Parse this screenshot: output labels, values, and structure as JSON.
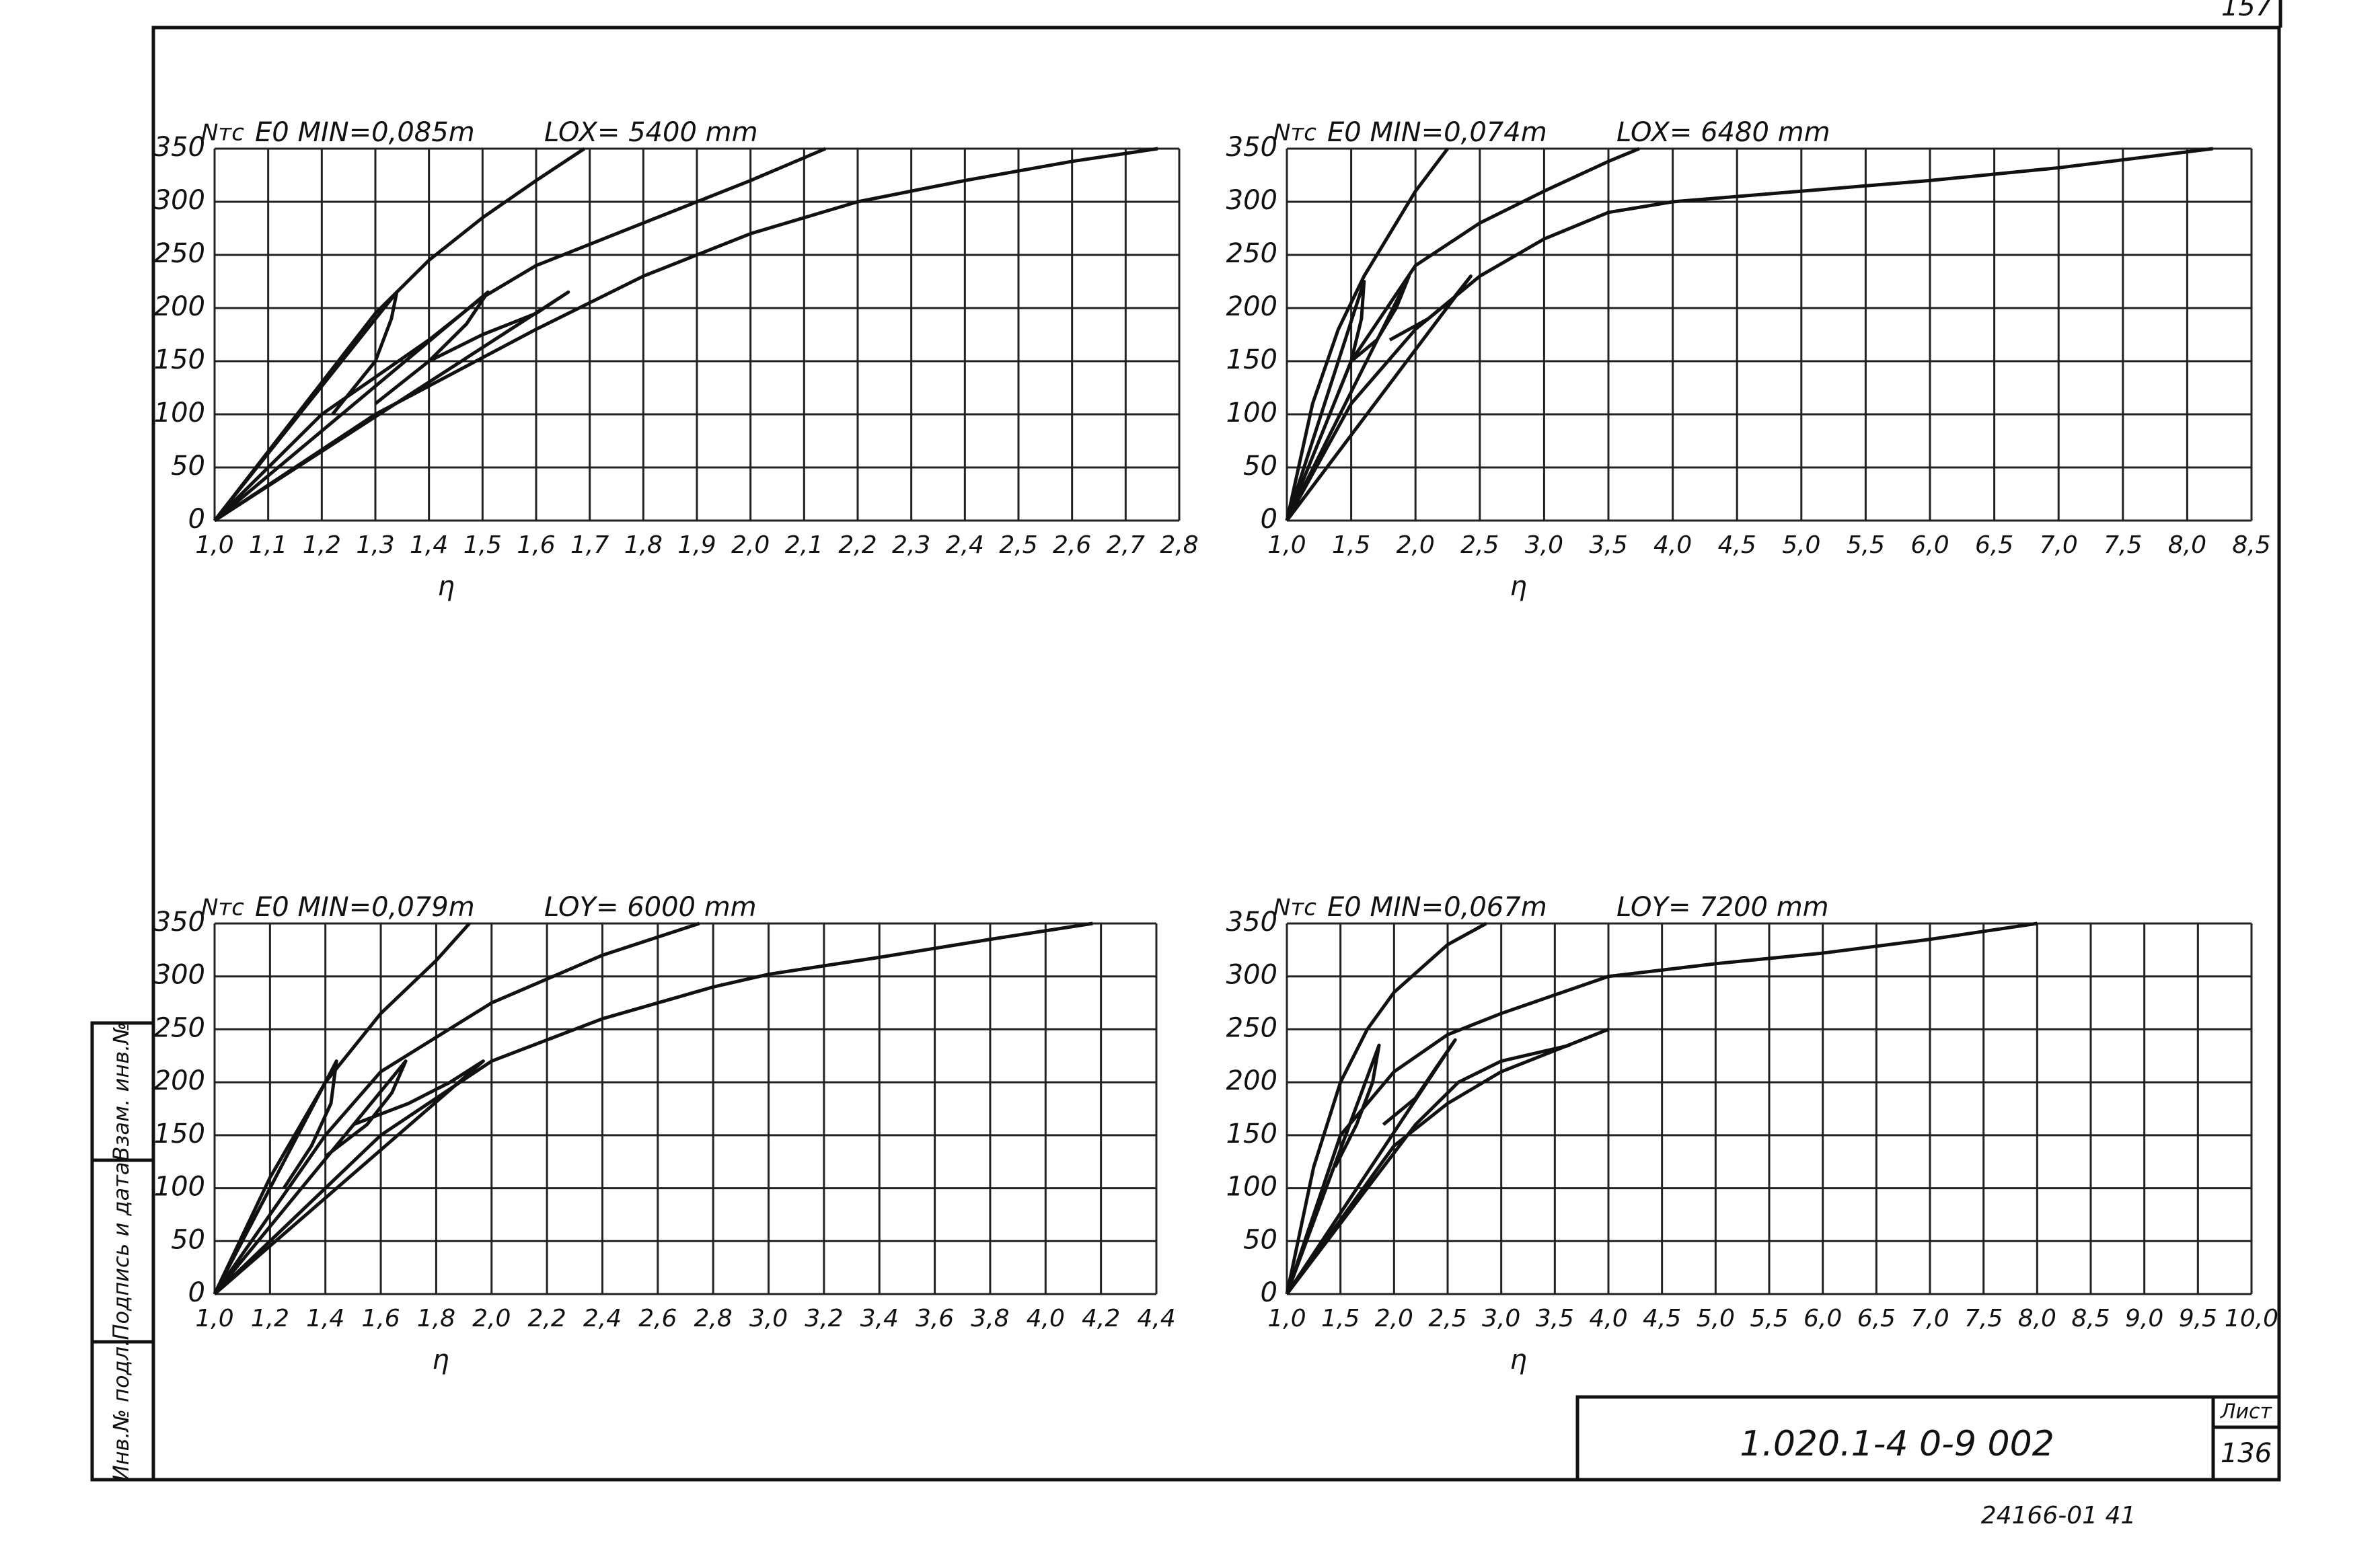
{
  "chart_data": [
    {
      "type": "line",
      "y_label": "Nтс",
      "title": "E0 MIN=0,085m",
      "subtitle": "LOX= 5400 mm",
      "x_label": "η",
      "xlim": [
        1.0,
        2.8
      ],
      "ylim": [
        0,
        350
      ],
      "grid": true,
      "color": "#111111",
      "xticks": [
        {
          "value": 1.0,
          "label": "1,0"
        },
        {
          "value": 1.1,
          "label": "1,1"
        },
        {
          "value": 1.2,
          "label": "1,2"
        },
        {
          "value": 1.3,
          "label": "1,3"
        },
        {
          "value": 1.4,
          "label": "1,4"
        },
        {
          "value": 1.5,
          "label": "1,5"
        },
        {
          "value": 1.6,
          "label": "1,6"
        },
        {
          "value": 1.7,
          "label": "1,7"
        },
        {
          "value": 1.8,
          "label": "1,8"
        },
        {
          "value": 1.9,
          "label": "1,9"
        },
        {
          "value": 2.0,
          "label": "2,0"
        },
        {
          "value": 2.1,
          "label": "2,1"
        },
        {
          "value": 2.2,
          "label": "2,2"
        },
        {
          "value": 2.3,
          "label": "2,3"
        },
        {
          "value": 2.4,
          "label": "2,4"
        },
        {
          "value": 2.5,
          "label": "2,5"
        },
        {
          "value": 2.6,
          "label": "2,6"
        },
        {
          "value": 2.7,
          "label": "2,7"
        },
        {
          "value": 2.8,
          "label": "2,8"
        }
      ],
      "yticks": [
        0,
        50,
        100,
        150,
        200,
        250,
        300,
        350
      ],
      "series": [
        {
          "x": [
            1.0,
            1.1,
            1.2,
            1.3,
            1.4,
            1.5,
            1.6,
            1.69
          ],
          "values": [
            0,
            65,
            130,
            195,
            245,
            285,
            320,
            350
          ]
        },
        {
          "x": [
            1.0,
            1.2,
            1.4,
            1.5,
            1.6,
            1.8,
            2.0,
            2.14
          ],
          "values": [
            0,
            100,
            170,
            210,
            240,
            280,
            320,
            350
          ]
        },
        {
          "x": [
            1.0,
            1.3,
            1.6,
            1.8,
            2.0,
            2.2,
            2.4,
            2.6,
            2.76
          ],
          "values": [
            0,
            100,
            180,
            230,
            270,
            300,
            320,
            338,
            350
          ]
        },
        {
          "x": [
            1.0,
            1.34,
            1.33,
            1.3,
            1.22
          ],
          "values": [
            0,
            215,
            190,
            150,
            100
          ]
        },
        {
          "x": [
            1.0,
            1.51,
            1.47,
            1.4,
            1.3
          ],
          "values": [
            0,
            215,
            185,
            150,
            110
          ]
        },
        {
          "x": [
            1.0,
            1.66,
            1.6,
            1.5,
            1.4
          ],
          "values": [
            0,
            215,
            195,
            175,
            150
          ]
        }
      ]
    },
    {
      "type": "line",
      "y_label": "Nтс",
      "title": "E0 MIN=0,074m",
      "subtitle": "LOX= 6480 mm",
      "x_label": "η",
      "xlim": [
        1.0,
        8.5
      ],
      "ylim": [
        0,
        350
      ],
      "grid": true,
      "color": "#111111",
      "xticks": [
        {
          "value": 1.0,
          "label": "1,0"
        },
        {
          "value": 1.5,
          "label": "1,5"
        },
        {
          "value": 2.0,
          "label": "2,0"
        },
        {
          "value": 2.5,
          "label": "2,5"
        },
        {
          "value": 3.0,
          "label": "3,0"
        },
        {
          "value": 3.5,
          "label": "3,5"
        },
        {
          "value": 4.0,
          "label": "4,0"
        },
        {
          "value": 4.5,
          "label": "4,5"
        },
        {
          "value": 5.0,
          "label": "5,0"
        },
        {
          "value": 5.5,
          "label": "5,5"
        },
        {
          "value": 6.0,
          "label": "6,0"
        },
        {
          "value": 6.5,
          "label": "6,5"
        },
        {
          "value": 7.0,
          "label": "7,0"
        },
        {
          "value": 7.5,
          "label": "7,5"
        },
        {
          "value": 8.0,
          "label": "8,0"
        },
        {
          "value": 8.5,
          "label": "8,5"
        }
      ],
      "yticks": [
        0,
        50,
        100,
        150,
        200,
        250,
        300,
        350
      ],
      "series": [
        {
          "x": [
            1.0,
            1.2,
            1.4,
            1.6,
            1.8,
            2.0,
            2.25
          ],
          "values": [
            0,
            110,
            180,
            230,
            270,
            310,
            350
          ]
        },
        {
          "x": [
            1.0,
            1.5,
            2.0,
            2.5,
            3.0,
            3.5,
            3.74
          ],
          "values": [
            0,
            150,
            240,
            280,
            310,
            338,
            350
          ]
        },
        {
          "x": [
            1.0,
            1.5,
            2.0,
            2.5,
            3.0,
            3.5,
            4.0,
            5.0,
            6.0,
            7.0,
            8.2
          ],
          "values": [
            0,
            110,
            180,
            230,
            265,
            290,
            300,
            310,
            320,
            332,
            350
          ]
        },
        {
          "x": [
            1.0,
            1.6,
            1.58,
            1.5,
            1.4
          ],
          "values": [
            0,
            225,
            190,
            150,
            120
          ]
        },
        {
          "x": [
            1.0,
            1.95,
            1.85,
            1.7,
            1.5
          ],
          "values": [
            0,
            230,
            200,
            170,
            150
          ]
        },
        {
          "x": [
            1.0,
            2.43,
            2.3,
            2.1,
            1.8
          ],
          "values": [
            0,
            230,
            210,
            190,
            170
          ]
        }
      ]
    },
    {
      "type": "line",
      "y_label": "Nтс",
      "title": "E0 MIN=0,079m",
      "subtitle": "LOY= 6000 mm",
      "x_label": "η",
      "xlim": [
        1.0,
        4.4
      ],
      "ylim": [
        0,
        350
      ],
      "grid": true,
      "color": "#111111",
      "xticks": [
        {
          "value": 1.0,
          "label": "1,0"
        },
        {
          "value": 1.2,
          "label": "1,2"
        },
        {
          "value": 1.4,
          "label": "1,4"
        },
        {
          "value": 1.6,
          "label": "1,6"
        },
        {
          "value": 1.8,
          "label": "1,8"
        },
        {
          "value": 2.0,
          "label": "2,0"
        },
        {
          "value": 2.2,
          "label": "2,2"
        },
        {
          "value": 2.4,
          "label": "2,4"
        },
        {
          "value": 2.6,
          "label": "2,6"
        },
        {
          "value": 2.8,
          "label": "2,8"
        },
        {
          "value": 3.0,
          "label": "3,0"
        },
        {
          "value": 3.2,
          "label": "3,2"
        },
        {
          "value": 3.4,
          "label": "3,4"
        },
        {
          "value": 3.6,
          "label": "3,6"
        },
        {
          "value": 3.8,
          "label": "3,8"
        },
        {
          "value": 4.0,
          "label": "4,0"
        },
        {
          "value": 4.2,
          "label": "4,2"
        },
        {
          "value": 4.4,
          "label": "4,4"
        }
      ],
      "yticks": [
        0,
        50,
        100,
        150,
        200,
        250,
        300,
        350
      ],
      "series": [
        {
          "x": [
            1.0,
            1.2,
            1.4,
            1.6,
            1.8,
            1.92
          ],
          "values": [
            0,
            110,
            200,
            265,
            315,
            350
          ]
        },
        {
          "x": [
            1.0,
            1.4,
            1.6,
            2.0,
            2.4,
            2.75
          ],
          "values": [
            0,
            150,
            210,
            275,
            320,
            350
          ]
        },
        {
          "x": [
            1.0,
            1.6,
            2.0,
            2.4,
            2.8,
            3.0,
            3.4,
            3.8,
            4.17
          ],
          "values": [
            0,
            150,
            220,
            260,
            290,
            302,
            318,
            335,
            350
          ]
        },
        {
          "x": [
            1.0,
            1.44,
            1.42,
            1.35,
            1.25
          ],
          "values": [
            0,
            220,
            180,
            140,
            100
          ]
        },
        {
          "x": [
            1.0,
            1.69,
            1.64,
            1.55,
            1.4
          ],
          "values": [
            0,
            220,
            190,
            160,
            130
          ]
        },
        {
          "x": [
            1.0,
            1.97,
            1.85,
            1.7,
            1.5
          ],
          "values": [
            0,
            220,
            200,
            180,
            160
          ]
        }
      ]
    },
    {
      "type": "line",
      "y_label": "Nтс",
      "title": "E0 MIN=0,067m",
      "subtitle": "LOY= 7200 mm",
      "x_label": "η",
      "xlim": [
        1.0,
        10.0
      ],
      "ylim": [
        0,
        350
      ],
      "grid": true,
      "color": "#111111",
      "xticks": [
        {
          "value": 1.0,
          "label": "1,0"
        },
        {
          "value": 1.5,
          "label": "1,5"
        },
        {
          "value": 2.0,
          "label": "2,0"
        },
        {
          "value": 2.5,
          "label": "2,5"
        },
        {
          "value": 3.0,
          "label": "3,0"
        },
        {
          "value": 3.5,
          "label": "3,5"
        },
        {
          "value": 4.0,
          "label": "4,0"
        },
        {
          "value": 4.5,
          "label": "4,5"
        },
        {
          "value": 5.0,
          "label": "5,0"
        },
        {
          "value": 5.5,
          "label": "5,5"
        },
        {
          "value": 6.0,
          "label": "6,0"
        },
        {
          "value": 6.5,
          "label": "6,5"
        },
        {
          "value": 7.0,
          "label": "7,0"
        },
        {
          "value": 7.5,
          "label": "7,5"
        },
        {
          "value": 8.0,
          "label": "8,0"
        },
        {
          "value": 8.5,
          "label": "8,5"
        },
        {
          "value": 9.0,
          "label": "9,0"
        },
        {
          "value": 9.5,
          "label": "9,5"
        },
        {
          "value": 10.0,
          "label": "10,0"
        }
      ],
      "yticks": [
        0,
        50,
        100,
        150,
        200,
        250,
        300,
        350
      ],
      "series": [
        {
          "x": [
            1.0,
            1.25,
            1.5,
            1.75,
            2.0,
            2.5,
            2.86
          ],
          "values": [
            0,
            120,
            200,
            250,
            285,
            330,
            350
          ]
        },
        {
          "x": [
            1.0,
            1.5,
            2.0,
            2.5,
            3.0,
            4.0,
            5.0,
            6.0,
            7.0,
            8.0
          ],
          "values": [
            0,
            150,
            210,
            245,
            265,
            300,
            312,
            322,
            335,
            350
          ]
        },
        {
          "x": [
            1.0,
            2.0,
            2.5,
            3.0,
            3.5,
            4.0
          ],
          "values": [
            0,
            140,
            180,
            210,
            230,
            250
          ]
        },
        {
          "x": [
            1.0,
            1.86,
            1.8,
            1.65,
            1.45
          ],
          "values": [
            0,
            235,
            200,
            160,
            120
          ]
        },
        {
          "x": [
            1.0,
            2.57,
            2.4,
            2.2,
            1.9
          ],
          "values": [
            0,
            240,
            215,
            185,
            160
          ]
        },
        {
          "x": [
            1.0,
            2.2,
            2.6,
            3.0,
            3.64
          ],
          "values": [
            0,
            160,
            200,
            220,
            235
          ]
        }
      ]
    }
  ],
  "sheet": {
    "code": "1.020.1-4  0-9  002",
    "sheet_label": "Лист",
    "sheet_number": "136",
    "archive_number": "24166-01  41",
    "corner_number": "157",
    "stamp": [
      "Инв.№ подл.",
      "Подпись и дата",
      "Взам. инв.№"
    ]
  }
}
